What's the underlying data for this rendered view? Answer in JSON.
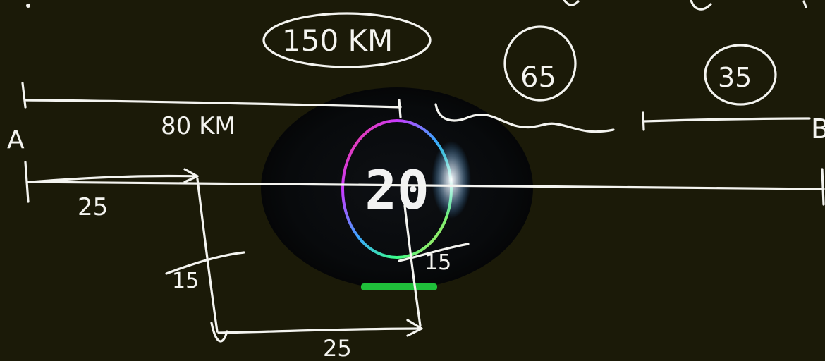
{
  "whiteboard": {
    "background_color": "#1b1a08",
    "ink_color": "#f4f4f0",
    "labels": {
      "point_a": "A",
      "point_b": "B",
      "total_distance": "150 KM",
      "distance_80": "80 KM",
      "time_65": "65",
      "time_35": "35",
      "leg_25_top": "25",
      "leg_15_left": "15",
      "leg_15_right": "15",
      "leg_25_bottom": "25"
    }
  },
  "timer_overlay": {
    "value": "20",
    "ring_colors": [
      "#ff3b6b",
      "#ffd23f",
      "#3bff8a",
      "#3ba6ff",
      "#c93bff"
    ],
    "progress_color": "#1fbf3a"
  }
}
